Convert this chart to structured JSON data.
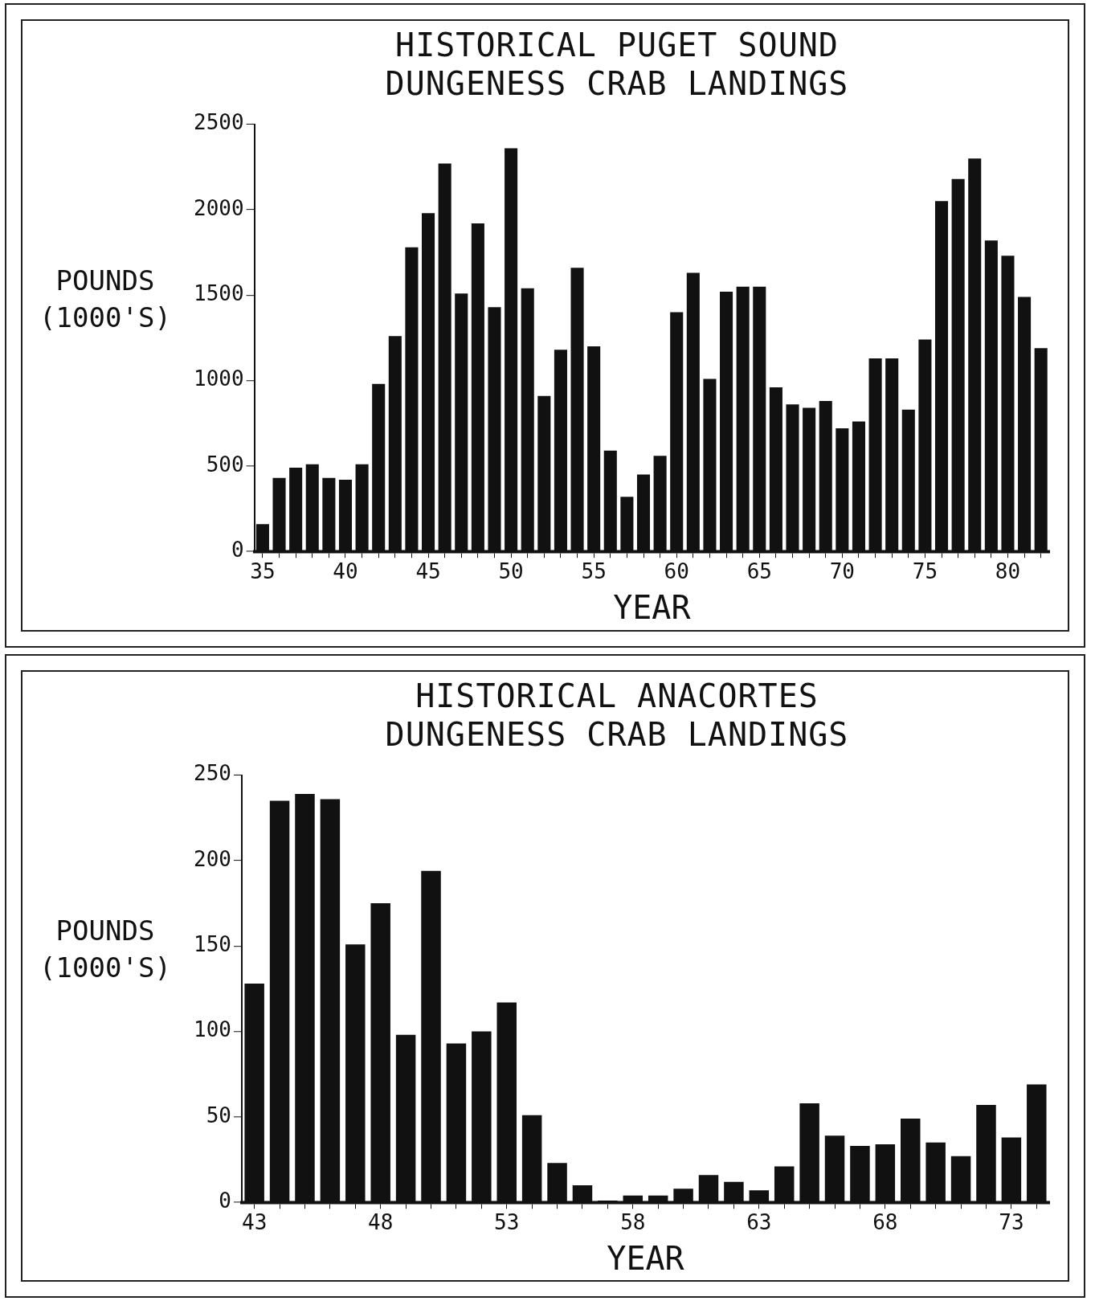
{
  "chart_data": [
    {
      "type": "bar",
      "title": "HISTORICAL PUGET SOUND DUNGENESS CRAB LANDINGS",
      "xlabel": "YEAR",
      "ylabel": "POUNDS (1000'S)",
      "categories": [
        "35",
        null,
        null,
        null,
        null,
        "40",
        null,
        null,
        null,
        null,
        "45",
        null,
        null,
        null,
        null,
        "50",
        null,
        null,
        null,
        null,
        "55",
        null,
        null,
        null,
        null,
        "60",
        null,
        null,
        null,
        null,
        "65",
        null,
        null,
        null,
        null,
        "70",
        null,
        null,
        null,
        null,
        "75",
        null,
        null,
        null,
        null,
        "80",
        null,
        null
      ],
      "values": [
        160,
        430,
        490,
        510,
        430,
        420,
        510,
        980,
        1260,
        1780,
        1980,
        2270,
        1510,
        1920,
        1430,
        2360,
        1540,
        910,
        1180,
        1660,
        1200,
        590,
        320,
        450,
        560,
        1400,
        1630,
        1010,
        1520,
        1550,
        1550,
        960,
        860,
        840,
        880,
        720,
        760,
        1130,
        1130,
        830,
        1240,
        2050,
        2180,
        2300,
        1820,
        1730,
        1490,
        1190
      ],
      "color": "#111111",
      "ylim": [
        0,
        2500
      ],
      "yticks": [
        0,
        500,
        1000,
        1500,
        2000,
        2500
      ],
      "grid": false,
      "legend": false
    },
    {
      "type": "bar",
      "title": "HISTORICAL ANACORTES DUNGENESS CRAB LANDINGS",
      "xlabel": "YEAR",
      "ylabel": "POUNDS (1000'S)",
      "categories": [
        "43",
        null,
        null,
        null,
        null,
        "48",
        null,
        null,
        null,
        null,
        "53",
        null,
        null,
        null,
        null,
        "58",
        null,
        null,
        null,
        null,
        "63",
        null,
        null,
        null,
        null,
        "68",
        null,
        null,
        null,
        null,
        "73",
        null
      ],
      "values": [
        128,
        235,
        239,
        236,
        151,
        175,
        98,
        194,
        93,
        100,
        117,
        51,
        23,
        10,
        1,
        4,
        4,
        8,
        16,
        12,
        7,
        21,
        58,
        39,
        33,
        34,
        49,
        35,
        27,
        57,
        38,
        69
      ],
      "color": "#111111",
      "ylim": [
        0,
        250
      ],
      "yticks": [
        0,
        50,
        100,
        150,
        200,
        250
      ],
      "grid": false,
      "legend": false
    }
  ]
}
